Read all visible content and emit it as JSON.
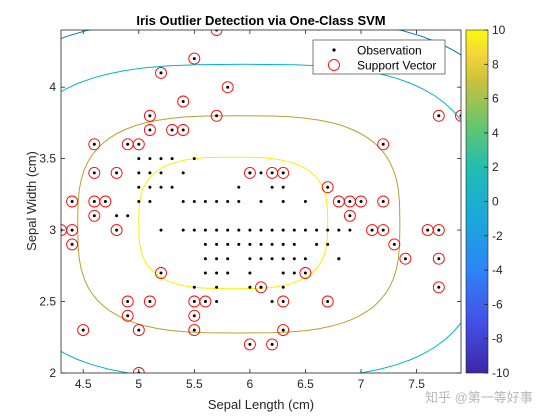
{
  "watermark": "知乎 @第一等好事",
  "chart_data": {
    "type": "scatter",
    "title": "Iris Outlier Detection via One-Class SVM",
    "xlabel": "Sepal Length (cm)",
    "ylabel": "Sepal Width (cm)",
    "xlim": [
      4.3,
      7.9
    ],
    "ylim": [
      2.0,
      4.4
    ],
    "xticks": [
      4.5,
      5,
      5.5,
      6,
      6.5,
      7,
      7.5
    ],
    "yticks": [
      2,
      2.5,
      3,
      3.5,
      4
    ],
    "legend": {
      "placement": "top-right",
      "entries": [
        "Observation",
        "Support Vector"
      ]
    },
    "colorbar": {
      "ticks": [
        10,
        8,
        6,
        4,
        2,
        0,
        -2,
        -4,
        -6,
        -8,
        -10
      ],
      "range": [
        -10,
        10
      ]
    },
    "colors": {
      "observation": "#000000",
      "support_vector": "#ff0000",
      "contour_outer": "#0072bd",
      "contour_2": "#00b5c8",
      "contour_3": "#b6a12b",
      "contour_inner": "#ffee00"
    },
    "observations": [
      [
        5.1,
        3.5
      ],
      [
        5.0,
        3.5
      ],
      [
        5.0,
        3.4
      ],
      [
        5.1,
        3.4
      ],
      [
        5.2,
        3.5
      ],
      [
        5.3,
        3.5
      ],
      [
        5.2,
        3.4
      ],
      [
        5.4,
        3.4
      ],
      [
        5.0,
        3.3
      ],
      [
        5.1,
        3.3
      ],
      [
        5.0,
        3.2
      ],
      [
        5.1,
        3.2
      ],
      [
        5.3,
        3.3
      ],
      [
        5.2,
        3.3
      ],
      [
        5.5,
        3.2
      ],
      [
        5.4,
        3.2
      ],
      [
        5.6,
        3.2
      ],
      [
        5.7,
        3.2
      ],
      [
        5.8,
        3.2
      ],
      [
        5.9,
        3.2
      ],
      [
        6.1,
        3.2
      ],
      [
        6.3,
        3.2
      ],
      [
        6.5,
        3.2
      ],
      [
        5.9,
        3.3
      ],
      [
        6.2,
        3.3
      ],
      [
        6.0,
        3.4
      ],
      [
        6.1,
        3.4
      ],
      [
        6.3,
        3.3
      ],
      [
        5.6,
        3.0
      ],
      [
        5.7,
        3.0
      ],
      [
        5.8,
        3.0
      ],
      [
        5.9,
        3.0
      ],
      [
        6.0,
        3.0
      ],
      [
        6.1,
        3.0
      ],
      [
        6.2,
        3.0
      ],
      [
        6.3,
        3.0
      ],
      [
        6.4,
        3.0
      ],
      [
        6.5,
        3.0
      ],
      [
        6.6,
        3.0
      ],
      [
        6.7,
        3.0
      ],
      [
        6.8,
        3.0
      ],
      [
        6.9,
        3.0
      ],
      [
        5.4,
        3.0
      ],
      [
        5.5,
        3.0
      ],
      [
        5.2,
        3.0
      ],
      [
        5.6,
        2.9
      ],
      [
        5.7,
        2.9
      ],
      [
        5.8,
        2.9
      ],
      [
        5.9,
        2.9
      ],
      [
        6.0,
        2.9
      ],
      [
        6.1,
        2.9
      ],
      [
        6.2,
        2.9
      ],
      [
        6.3,
        2.9
      ],
      [
        6.4,
        2.9
      ],
      [
        6.6,
        2.9
      ],
      [
        6.7,
        2.9
      ],
      [
        5.6,
        2.8
      ],
      [
        5.7,
        2.8
      ],
      [
        5.8,
        2.8
      ],
      [
        6.0,
        2.8
      ],
      [
        6.1,
        2.8
      ],
      [
        6.2,
        2.8
      ],
      [
        6.3,
        2.8
      ],
      [
        6.4,
        2.8
      ],
      [
        6.5,
        2.8
      ],
      [
        6.8,
        2.8
      ],
      [
        5.6,
        2.7
      ],
      [
        5.7,
        2.7
      ],
      [
        5.8,
        2.7
      ],
      [
        6.0,
        2.7
      ],
      [
        6.3,
        2.7
      ],
      [
        6.4,
        2.7
      ],
      [
        5.5,
        2.6
      ],
      [
        5.7,
        2.6
      ],
      [
        6.0,
        2.6
      ],
      [
        6.1,
        2.6
      ],
      [
        6.3,
        2.6
      ],
      [
        5.5,
        2.5
      ],
      [
        5.6,
        2.5
      ],
      [
        5.7,
        2.5
      ],
      [
        6.2,
        2.5
      ],
      [
        6.3,
        2.5
      ],
      [
        6.7,
        2.5
      ],
      [
        5.5,
        2.4
      ],
      [
        5.5,
        2.3
      ],
      [
        6.3,
        2.3
      ],
      [
        6.0,
        2.2
      ],
      [
        6.2,
        2.2
      ],
      [
        5.0,
        2.0
      ],
      [
        4.5,
        2.3
      ],
      [
        4.9,
        2.5
      ],
      [
        4.9,
        2.4
      ],
      [
        5.1,
        2.5
      ],
      [
        5.0,
        2.3
      ],
      [
        4.3,
        3.0
      ],
      [
        4.4,
        2.9
      ],
      [
        4.4,
        3.0
      ],
      [
        4.4,
        3.2
      ],
      [
        4.6,
        3.1
      ],
      [
        4.6,
        3.2
      ],
      [
        4.6,
        3.4
      ],
      [
        4.6,
        3.6
      ],
      [
        4.7,
        3.2
      ],
      [
        4.8,
        3.0
      ],
      [
        4.8,
        3.1
      ],
      [
        4.8,
        3.4
      ],
      [
        4.9,
        3.6
      ],
      [
        4.9,
        3.1
      ],
      [
        5.0,
        3.6
      ],
      [
        5.1,
        3.7
      ],
      [
        5.1,
        3.8
      ],
      [
        5.2,
        4.1
      ],
      [
        5.3,
        3.7
      ],
      [
        5.4,
        3.7
      ],
      [
        5.4,
        3.9
      ],
      [
        5.5,
        4.2
      ],
      [
        5.7,
        3.8
      ],
      [
        5.7,
        4.4
      ],
      [
        5.8,
        4.0
      ],
      [
        5.2,
        2.7
      ],
      [
        5.5,
        3.5
      ],
      [
        6.0,
        3.4
      ],
      [
        6.2,
        3.4
      ],
      [
        6.3,
        3.4
      ],
      [
        6.7,
        3.3
      ],
      [
        6.8,
        3.2
      ],
      [
        6.9,
        3.1
      ],
      [
        6.9,
        3.2
      ],
      [
        7.0,
        3.2
      ],
      [
        7.1,
        3.0
      ],
      [
        7.2,
        3.0
      ],
      [
        7.2,
        3.2
      ],
      [
        7.2,
        3.6
      ],
      [
        7.3,
        2.9
      ],
      [
        7.4,
        2.8
      ],
      [
        7.6,
        3.0
      ],
      [
        7.7,
        3.0
      ],
      [
        7.7,
        2.8
      ],
      [
        7.7,
        2.6
      ],
      [
        7.7,
        3.8
      ],
      [
        7.9,
        3.8
      ],
      [
        6.8,
        2.8
      ],
      [
        6.5,
        2.7
      ],
      [
        6.1,
        2.6
      ]
    ],
    "support_vectors": [
      [
        4.3,
        3.0
      ],
      [
        4.4,
        2.9
      ],
      [
        4.4,
        3.0
      ],
      [
        4.4,
        3.2
      ],
      [
        4.6,
        3.1
      ],
      [
        4.6,
        3.2
      ],
      [
        4.6,
        3.4
      ],
      [
        4.6,
        3.6
      ],
      [
        4.7,
        3.2
      ],
      [
        4.8,
        3.0
      ],
      [
        4.8,
        3.4
      ],
      [
        4.9,
        3.6
      ],
      [
        4.5,
        2.3
      ],
      [
        4.9,
        2.5
      ],
      [
        4.9,
        2.4
      ],
      [
        5.0,
        2.3
      ],
      [
        5.0,
        2.0
      ],
      [
        5.1,
        2.5
      ],
      [
        5.2,
        2.7
      ],
      [
        5.0,
        3.6
      ],
      [
        5.1,
        3.7
      ],
      [
        5.1,
        3.8
      ],
      [
        5.2,
        4.1
      ],
      [
        5.3,
        3.7
      ],
      [
        5.4,
        3.7
      ],
      [
        5.4,
        3.9
      ],
      [
        5.5,
        4.2
      ],
      [
        5.7,
        3.8
      ],
      [
        5.7,
        4.4
      ],
      [
        5.8,
        4.0
      ],
      [
        5.5,
        2.5
      ],
      [
        5.5,
        2.4
      ],
      [
        5.5,
        2.3
      ],
      [
        5.6,
        2.5
      ],
      [
        6.0,
        2.2
      ],
      [
        6.1,
        2.6
      ],
      [
        6.2,
        2.2
      ],
      [
        6.3,
        2.5
      ],
      [
        6.3,
        2.3
      ],
      [
        6.0,
        3.4
      ],
      [
        6.2,
        3.4
      ],
      [
        6.3,
        3.4
      ],
      [
        6.5,
        2.7
      ],
      [
        6.7,
        2.5
      ],
      [
        6.7,
        3.3
      ],
      [
        6.8,
        3.2
      ],
      [
        6.9,
        3.1
      ],
      [
        6.9,
        3.2
      ],
      [
        7.0,
        3.2
      ],
      [
        7.1,
        3.0
      ],
      [
        7.2,
        3.0
      ],
      [
        7.2,
        3.2
      ],
      [
        7.2,
        3.6
      ],
      [
        7.3,
        2.9
      ],
      [
        7.4,
        2.8
      ],
      [
        7.6,
        3.0
      ],
      [
        7.7,
        3.0
      ],
      [
        7.7,
        2.8
      ],
      [
        7.7,
        2.6
      ],
      [
        7.7,
        3.8
      ],
      [
        7.9,
        3.8
      ]
    ],
    "contours": [
      {
        "level": "outer",
        "color": "#0072bd",
        "center": [
          5.95,
          3.1
        ],
        "rx": 2.5,
        "ry": 1.38
      },
      {
        "level": "second",
        "color": "#00b5c8",
        "center": [
          5.95,
          3.06
        ],
        "rx": 2.15,
        "ry": 1.1
      },
      {
        "level": "third",
        "color": "#b6a12b",
        "center": [
          5.9,
          3.04
        ],
        "rx": 1.45,
        "ry": 0.76
      },
      {
        "level": "inner",
        "color": "#ffee00",
        "center": [
          5.85,
          3.05
        ],
        "rx": 0.85,
        "ry": 0.46
      }
    ]
  }
}
